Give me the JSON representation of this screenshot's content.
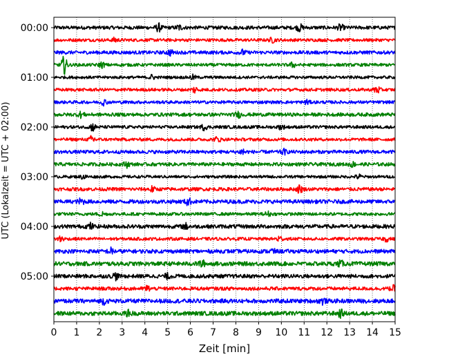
{
  "chart_data": {
    "type": "line",
    "title": "",
    "xlabel": "Zeit  [min]",
    "ylabel": "UTC (Lokalzeit = UTC + 02:00)",
    "xlim": [
      0,
      15
    ],
    "x_ticks": [
      0,
      1,
      2,
      3,
      4,
      5,
      6,
      7,
      8,
      9,
      10,
      11,
      12,
      13,
      14,
      15
    ],
    "x_tick_labels": [
      "0",
      "1",
      "2",
      "3",
      "4",
      "5",
      "6",
      "7",
      "8",
      "9",
      "10",
      "11",
      "12",
      "13",
      "14",
      "15"
    ],
    "grid": "vertical dotted",
    "y_tick_labels": [
      "00:00",
      "01:00",
      "02:00",
      "03:00",
      "04:00",
      "05:00"
    ],
    "y_tick_rows": [
      0,
      4,
      8,
      12,
      16,
      20
    ],
    "trace_minutes": 15,
    "color_cycle": [
      "#000000",
      "#ff0000",
      "#0000ff",
      "#008000"
    ],
    "traces": [
      {
        "start": "00:00",
        "amp": 0.25,
        "events": [
          [
            4.6,
            0.5
          ],
          [
            5.5,
            0.35
          ],
          [
            10.8,
            0.45
          ],
          [
            12.6,
            0.4
          ]
        ]
      },
      {
        "start": "00:15",
        "amp": 0.22,
        "events": [
          [
            2.7,
            0.3
          ],
          [
            9.6,
            0.3
          ]
        ]
      },
      {
        "start": "00:30",
        "amp": 0.25,
        "events": [
          [
            5.1,
            0.35
          ],
          [
            8.3,
            0.3
          ]
        ]
      },
      {
        "start": "00:45",
        "amp": 0.22,
        "events": [
          [
            0.45,
            1.2
          ],
          [
            2.1,
            0.35
          ],
          [
            10.5,
            0.3
          ]
        ]
      },
      {
        "start": "01:00",
        "amp": 0.2,
        "events": [
          [
            4.3,
            0.3
          ],
          [
            6.1,
            0.3
          ]
        ]
      },
      {
        "start": "01:15",
        "amp": 0.22,
        "events": [
          [
            6.2,
            0.4
          ],
          [
            14.2,
            0.55
          ]
        ]
      },
      {
        "start": "01:30",
        "amp": 0.22,
        "events": [
          [
            2.2,
            0.35
          ],
          [
            11.1,
            0.3
          ]
        ]
      },
      {
        "start": "01:45",
        "amp": 0.25,
        "events": [
          [
            1.2,
            0.35
          ],
          [
            8.1,
            0.35
          ]
        ]
      },
      {
        "start": "02:00",
        "amp": 0.22,
        "events": [
          [
            1.7,
            0.5
          ],
          [
            6.6,
            0.35
          ],
          [
            10.0,
            0.3
          ]
        ]
      },
      {
        "start": "02:15",
        "amp": 0.22,
        "events": [
          [
            1.7,
            0.55
          ],
          [
            7.2,
            0.35
          ]
        ]
      },
      {
        "start": "02:30",
        "amp": 0.25,
        "events": [
          [
            8.3,
            0.45
          ],
          [
            10.1,
            0.3
          ]
        ]
      },
      {
        "start": "02:45",
        "amp": 0.25,
        "events": [
          [
            3.2,
            0.35
          ],
          [
            13.1,
            0.3
          ]
        ]
      },
      {
        "start": "03:00",
        "amp": 0.2,
        "events": [
          [
            1.3,
            0.3
          ],
          [
            13.4,
            0.3
          ]
        ]
      },
      {
        "start": "03:15",
        "amp": 0.25,
        "events": [
          [
            4.3,
            0.35
          ],
          [
            10.8,
            0.5
          ]
        ]
      },
      {
        "start": "03:30",
        "amp": 0.28,
        "events": [
          [
            1.2,
            0.4
          ],
          [
            5.9,
            0.45
          ]
        ]
      },
      {
        "start": "03:45",
        "amp": 0.22,
        "events": [
          [
            2.1,
            0.3
          ],
          [
            9.4,
            0.3
          ]
        ]
      },
      {
        "start": "04:00",
        "amp": 0.28,
        "events": [
          [
            1.6,
            0.4
          ],
          [
            5.8,
            0.35
          ]
        ]
      },
      {
        "start": "04:15",
        "amp": 0.22,
        "events": [
          [
            0.3,
            0.4
          ],
          [
            9.9,
            0.4
          ],
          [
            14.6,
            0.3
          ]
        ]
      },
      {
        "start": "04:30",
        "amp": 0.28,
        "events": [
          [
            2.5,
            0.4
          ],
          [
            9.6,
            0.3
          ]
        ]
      },
      {
        "start": "04:45",
        "amp": 0.3,
        "events": [
          [
            6.5,
            0.45
          ],
          [
            12.6,
            0.35
          ]
        ]
      },
      {
        "start": "05:00",
        "amp": 0.28,
        "events": [
          [
            2.7,
            0.45
          ],
          [
            5.0,
            0.3
          ]
        ]
      },
      {
        "start": "05:15",
        "amp": 0.25,
        "events": [
          [
            4.1,
            0.35
          ],
          [
            14.9,
            0.35
          ]
        ]
      },
      {
        "start": "05:30",
        "amp": 0.3,
        "events": [
          [
            2.2,
            0.35
          ],
          [
            11.8,
            0.4
          ]
        ]
      },
      {
        "start": "05:45",
        "amp": 0.3,
        "events": [
          [
            3.3,
            0.4
          ],
          [
            12.6,
            0.45
          ]
        ]
      }
    ]
  }
}
